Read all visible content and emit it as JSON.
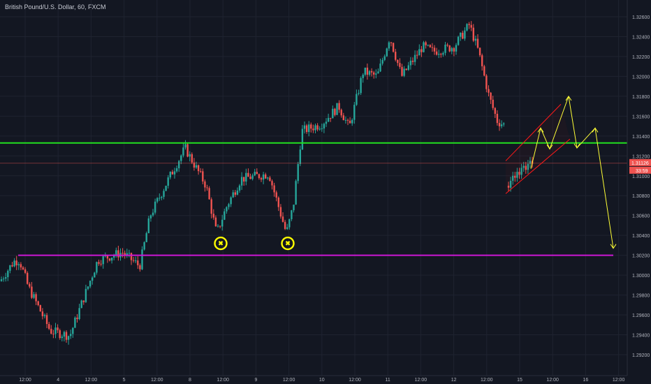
{
  "header": {
    "title": "British Pound/U.S. Dollar, 60, FXCM"
  },
  "chart_data": {
    "type": "candlestick",
    "symbol": "British Pound/U.S. Dollar",
    "interval": "60",
    "source": "FXCM",
    "ylim": [
      1.291,
      1.327
    ],
    "y_ticks": [
      "1.32600",
      "1.32400",
      "1.32200",
      "1.32000",
      "1.31800",
      "1.31600",
      "1.31400",
      "1.31200",
      "1.31000",
      "1.30800",
      "1.30600",
      "1.30400",
      "1.30200",
      "1.30000",
      "1.29800",
      "1.29600",
      "1.29400",
      "1.29200"
    ],
    "x_ticks": [
      "12:00",
      "4",
      "12:00",
      "5",
      "12:00",
      "8",
      "12:00",
      "9",
      "12:00",
      "10",
      "12:00",
      "11",
      "12:00",
      "12",
      "12:00",
      "15",
      "12:00",
      "16",
      "12:00"
    ],
    "last_price": {
      "price": "1.31126",
      "countdown": "33:59"
    },
    "levels": [
      {
        "name": "resistance",
        "price": 1.3133,
        "color": "#22e01f"
      },
      {
        "name": "support",
        "price": 1.302,
        "color": "#cc17d4"
      }
    ],
    "colors": {
      "up": "#26a69a",
      "down": "#ef5350",
      "projection": "#ffff36",
      "channel": "#ff1a1a",
      "marker": "#ffff00"
    },
    "projection_path": [
      [
        0,
        1.3107
      ],
      [
        7,
        1.3148
      ],
      [
        13,
        1.3127
      ],
      [
        22,
        1.318
      ],
      [
        29,
        1.3128
      ],
      [
        38,
        1.3148
      ],
      [
        48,
        1.3027
      ]
    ],
    "touch_markers": [
      {
        "label": "first touch",
        "price": 1.3032,
        "x_day": "8"
      },
      {
        "label": "second touch",
        "price": 1.3032,
        "x_day": "9"
      }
    ]
  }
}
